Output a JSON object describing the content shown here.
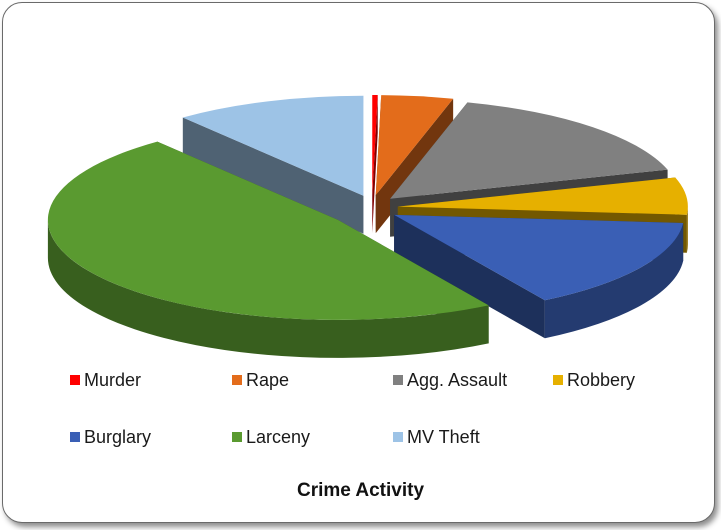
{
  "chart_data": {
    "type": "pie",
    "title": "Crime Activity",
    "style": "3d-exploded",
    "legend_position": "bottom",
    "categories": [
      "Murder",
      "Rape",
      "Agg. Assault",
      "Robbery",
      "Burglary",
      "Larceny",
      "MV Theft"
    ],
    "values": [
      0.3,
      4,
      16,
      6,
      15,
      48,
      10.7
    ],
    "colors": [
      "#ff0000",
      "#e36c1b",
      "#808080",
      "#e6b000",
      "#3a5fb5",
      "#5a9a30",
      "#9dc3e6"
    ]
  }
}
